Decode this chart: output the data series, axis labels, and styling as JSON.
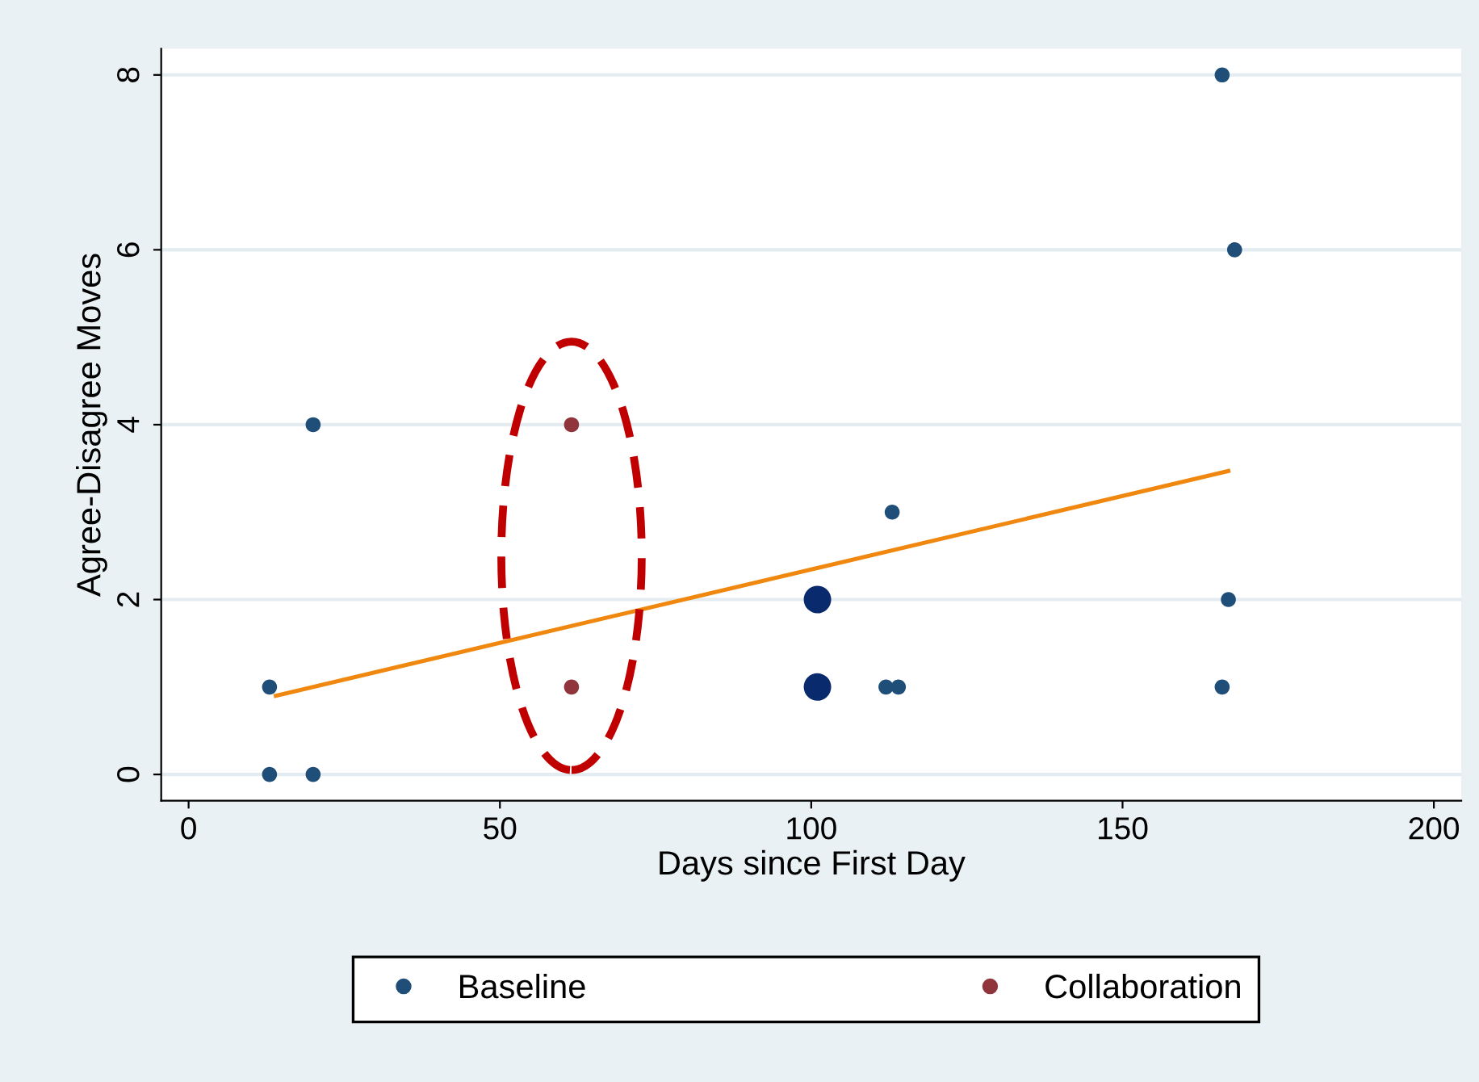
{
  "chart_data": {
    "type": "scatter",
    "xlabel": "Days since First Day",
    "ylabel": "Agree-Disagree Moves",
    "xlim": [
      -4.4,
      204.4
    ],
    "ylim": [
      -0.3,
      8.3
    ],
    "xticks": [
      0,
      50,
      100,
      150,
      200
    ],
    "yticks": [
      0,
      2,
      4,
      6,
      8
    ],
    "grid": "y",
    "legend": "bottom",
    "marker": "circle",
    "series": [
      {
        "name": "Baseline",
        "color": "#1f4e79",
        "x": [
          13,
          20,
          13,
          20,
          113,
          112,
          114,
          166,
          168,
          167,
          166
        ],
        "values": [
          0,
          0,
          1,
          4,
          3,
          1,
          1,
          8,
          6,
          2,
          1
        ]
      },
      {
        "name": "Collaboration",
        "color": "#90353b",
        "x": [
          61.5,
          61.5
        ],
        "values": [
          4,
          1
        ]
      },
      {
        "type": "bubble",
        "color": "#0a2a6e",
        "x": [
          101,
          101
        ],
        "values": [
          2,
          1
        ],
        "sizes": [
          1,
          1
        ]
      },
      {
        "type": "line",
        "marker": "none",
        "color": "#f0870f",
        "x": [
          14,
          167
        ],
        "values": [
          0.9,
          3.47
        ]
      }
    ]
  }
}
